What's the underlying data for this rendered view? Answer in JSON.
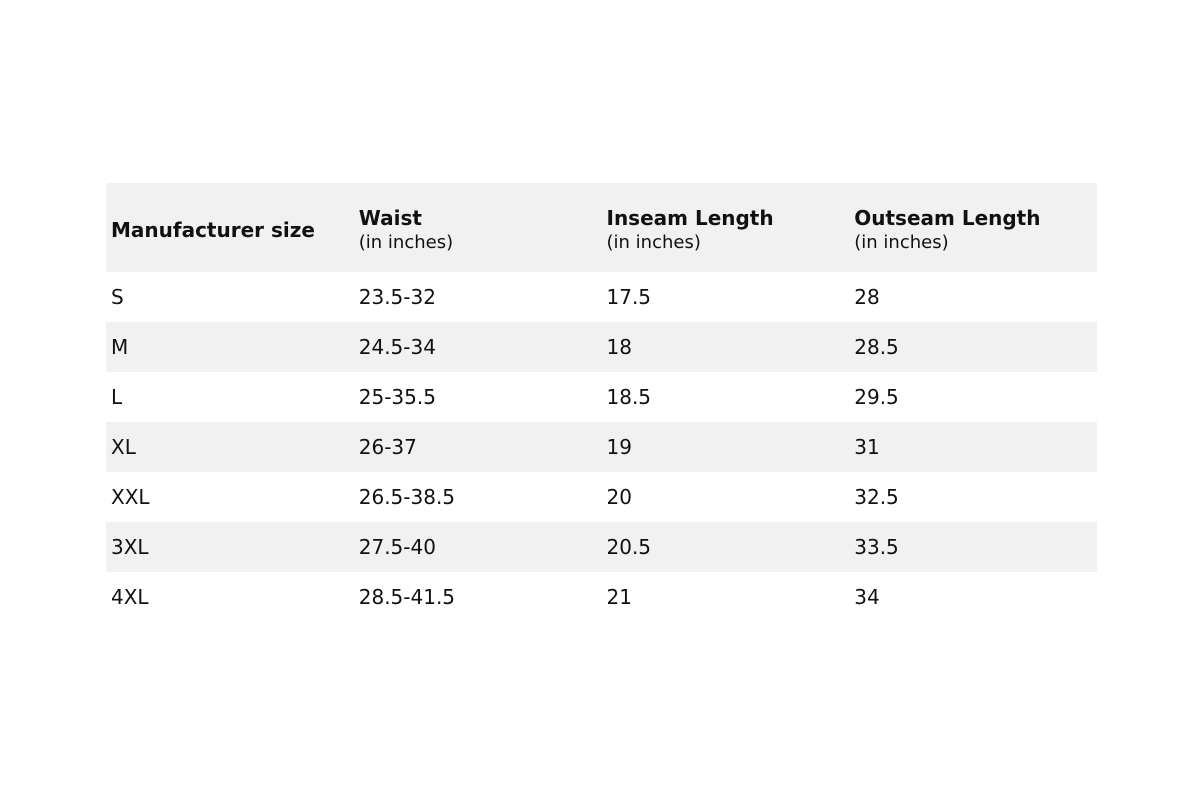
{
  "table": {
    "columns": [
      {
        "title": "Manufacturer size"
      },
      {
        "title": "Waist",
        "subtitle": "(in inches)"
      },
      {
        "title": "Inseam Length",
        "subtitle": "(in inches)"
      },
      {
        "title": "Outseam Length",
        "subtitle": "(in inches)"
      }
    ],
    "rows": [
      [
        "S",
        "23.5-32",
        17.5,
        28
      ],
      [
        "M",
        "24.5-34",
        18,
        28.5
      ],
      [
        "L",
        "25-35.5",
        18.5,
        29.5
      ],
      [
        "XL",
        "26-37",
        19,
        31
      ],
      [
        "XXL",
        "26.5-38.5",
        20,
        32.5
      ],
      [
        "3XL",
        "27.5-40",
        20.5,
        33.5
      ],
      [
        "4XL",
        "28.5-41.5",
        21,
        34
      ]
    ]
  }
}
